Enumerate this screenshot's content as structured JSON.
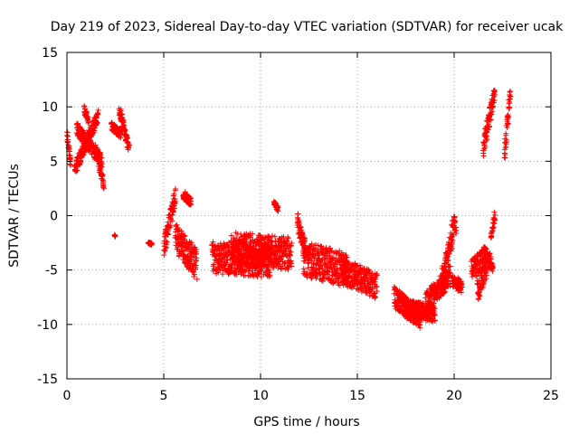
{
  "chart_data": {
    "type": "scatter",
    "title": "Day 219 of 2023, Sidereal Day-to-day VTEC variation (SDTVAR) for receiver ucak",
    "xlabel": "GPS time / hours",
    "ylabel": "SDTVAR / TECUs",
    "xlim": [
      0,
      25
    ],
    "ylim": [
      -15,
      15
    ],
    "xticks": [
      "0",
      "5",
      "10",
      "15",
      "20",
      "25"
    ],
    "yticks": [
      "15",
      "10",
      "5",
      "0",
      "-5",
      "-10",
      "-15"
    ],
    "xtick_values": [
      0,
      5,
      10,
      15,
      20,
      25
    ],
    "ytick_values": [
      15,
      10,
      5,
      0,
      -5,
      -10,
      -15
    ],
    "grid": true,
    "marker": "+",
    "color": "#ff0000",
    "segments": [
      {
        "x": [
          0.0,
          0.2
        ],
        "y": [
          7.5,
          4.8
        ],
        "jitter": 0.5
      },
      {
        "x": [
          0.4,
          1.6
        ],
        "y": [
          4.2,
          9.2
        ],
        "jitter": 0.6
      },
      {
        "x": [
          0.5,
          1.8
        ],
        "y": [
          8.0,
          5.0
        ],
        "jitter": 0.6
      },
      {
        "x": [
          0.9,
          1.1
        ],
        "y": [
          9.8,
          8.8
        ],
        "jitter": 0.4
      },
      {
        "x": [
          1.5,
          1.9
        ],
        "y": [
          6.2,
          2.8
        ],
        "jitter": 0.5
      },
      {
        "x": [
          2.3,
          2.8
        ],
        "y": [
          8.2,
          7.5
        ],
        "jitter": 0.4
      },
      {
        "x": [
          2.7,
          3.2
        ],
        "y": [
          9.8,
          6.2
        ],
        "jitter": 0.5
      },
      {
        "x": [
          2.45,
          2.5
        ],
        "y": [
          -1.8,
          -1.9
        ],
        "jitter": 0.1
      },
      {
        "x": [
          4.2,
          4.4
        ],
        "y": [
          -2.5,
          -2.6
        ],
        "jitter": 0.1
      },
      {
        "x": [
          5.0,
          5.6
        ],
        "y": [
          -3.0,
          1.8
        ],
        "jitter": 0.9
      },
      {
        "x": [
          5.6,
          6.7
        ],
        "y": [
          -2.0,
          -4.5
        ],
        "jitter": 1.4
      },
      {
        "x": [
          6.0,
          6.4
        ],
        "y": [
          2.0,
          1.2
        ],
        "jitter": 0.4
      },
      {
        "x": [
          7.5,
          10.5
        ],
        "y": [
          -3.8,
          -4.2
        ],
        "jitter": 1.5
      },
      {
        "x": [
          8.5,
          11.6
        ],
        "y": [
          -3.0,
          -3.5
        ],
        "jitter": 1.5
      },
      {
        "x": [
          10.7,
          10.9
        ],
        "y": [
          1.1,
          0.6
        ],
        "jitter": 0.3
      },
      {
        "x": [
          11.9,
          12.3
        ],
        "y": [
          -0.5,
          -3.0
        ],
        "jitter": 0.8
      },
      {
        "x": [
          12.2,
          14.5
        ],
        "y": [
          -4.0,
          -5.0
        ],
        "jitter": 1.6
      },
      {
        "x": [
          14.2,
          16.0
        ],
        "y": [
          -5.0,
          -6.5
        ],
        "jitter": 1.2
      },
      {
        "x": [
          16.9,
          18.3
        ],
        "y": [
          -7.5,
          -9.5
        ],
        "jitter": 1.0
      },
      {
        "x": [
          17.4,
          19.0
        ],
        "y": [
          -8.5,
          -9.0
        ],
        "jitter": 0.8
      },
      {
        "x": [
          18.5,
          19.8
        ],
        "y": [
          -8.0,
          -5.5
        ],
        "jitter": 1.0
      },
      {
        "x": [
          19.3,
          20.0
        ],
        "y": [
          -6.5,
          -1.0
        ],
        "jitter": 1.2
      },
      {
        "x": [
          19.9,
          20.4
        ],
        "y": [
          -6.0,
          -6.5
        ],
        "jitter": 0.6
      },
      {
        "x": [
          20.0,
          20.1
        ],
        "y": [
          0.0,
          -1.5
        ],
        "jitter": 0.4
      },
      {
        "x": [
          20.9,
          21.6
        ],
        "y": [
          -5.0,
          -3.8
        ],
        "jitter": 1.0
      },
      {
        "x": [
          21.2,
          21.7
        ],
        "y": [
          -7.0,
          -4.5
        ],
        "jitter": 1.0
      },
      {
        "x": [
          21.5,
          22.0
        ],
        "y": [
          -3.5,
          -4.5
        ],
        "jitter": 0.8
      },
      {
        "x": [
          21.9,
          22.1
        ],
        "y": [
          -2.0,
          0.0
        ],
        "jitter": 0.4
      },
      {
        "x": [
          21.5,
          22.1
        ],
        "y": [
          6.2,
          11.3
        ],
        "jitter": 0.8
      },
      {
        "x": [
          22.6,
          22.9
        ],
        "y": [
          5.5,
          11.4
        ],
        "jitter": 0.8
      }
    ]
  }
}
